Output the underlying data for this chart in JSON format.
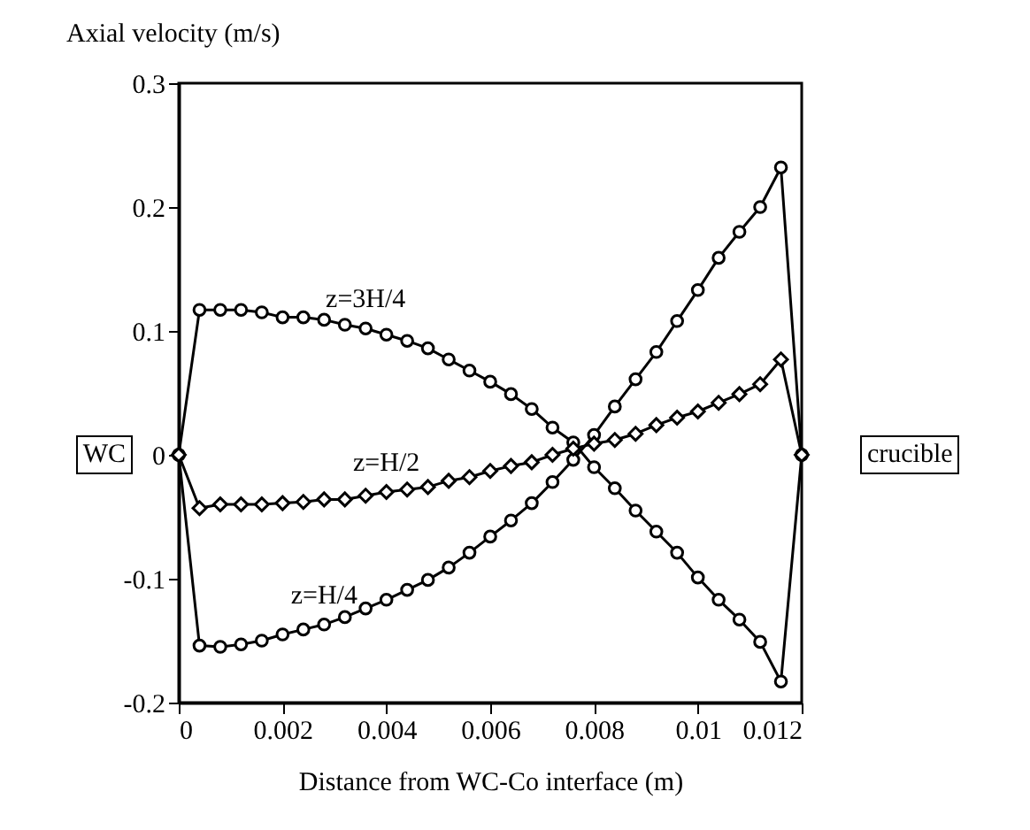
{
  "chart_data": {
    "type": "line",
    "xlabel": "Distance from WC-Co interface (m)",
    "ylabel": "Axial velocity (m/s)",
    "x": [
      0,
      0.0004,
      0.0008,
      0.0012,
      0.0016,
      0.002,
      0.0024,
      0.0028,
      0.0032,
      0.0036,
      0.004,
      0.0044,
      0.0048,
      0.0052,
      0.0056,
      0.006,
      0.0064,
      0.0068,
      0.0072,
      0.0076,
      0.008,
      0.0084,
      0.0088,
      0.0092,
      0.0096,
      0.01,
      0.0104,
      0.0108,
      0.0112,
      0.0116,
      0.012
    ],
    "series": [
      {
        "name": "z=3H/4",
        "color": "#000000",
        "marker": "circle",
        "values": [
          0,
          0.117,
          0.117,
          0.117,
          0.115,
          0.111,
          0.111,
          0.109,
          0.105,
          0.102,
          0.097,
          0.092,
          0.086,
          0.077,
          0.068,
          0.059,
          0.049,
          0.037,
          0.022,
          0.01,
          -0.01,
          -0.027,
          -0.045,
          -0.062,
          -0.079,
          -0.099,
          -0.117,
          -0.133,
          -0.151,
          -0.183,
          0
        ]
      },
      {
        "name": "z=H/4",
        "color": "#000000",
        "marker": "circle",
        "values": [
          0,
          -0.154,
          -0.155,
          -0.153,
          -0.15,
          -0.145,
          -0.141,
          -0.137,
          -0.131,
          -0.124,
          -0.117,
          -0.109,
          -0.101,
          -0.091,
          -0.079,
          -0.066,
          -0.053,
          -0.039,
          -0.022,
          -0.004,
          0.016,
          0.039,
          0.061,
          0.083,
          0.108,
          0.133,
          0.159,
          0.18,
          0.2,
          0.232,
          0
        ]
      },
      {
        "name": "z=H/2",
        "color": "#000000",
        "marker": "diamond",
        "values": [
          0,
          -0.043,
          -0.04,
          -0.04,
          -0.04,
          -0.039,
          -0.038,
          -0.036,
          -0.036,
          -0.033,
          -0.03,
          -0.028,
          -0.026,
          -0.021,
          -0.018,
          -0.013,
          -0.009,
          -0.006,
          0,
          0.005,
          0.009,
          0.012,
          0.017,
          0.024,
          0.03,
          0.035,
          0.042,
          0.049,
          0.057,
          0.077,
          0
        ]
      }
    ],
    "xlim": [
      0,
      0.012
    ],
    "xticks": [
      0,
      0.002,
      0.004,
      0.006,
      0.008,
      0.01,
      0.012
    ],
    "ylim": [
      -0.2,
      0.3
    ],
    "yticks": [
      -0.2,
      -0.1,
      0,
      0.1,
      0.2,
      0.3
    ],
    "annotations": [
      "WC",
      "crucible"
    ],
    "grid": false
  }
}
